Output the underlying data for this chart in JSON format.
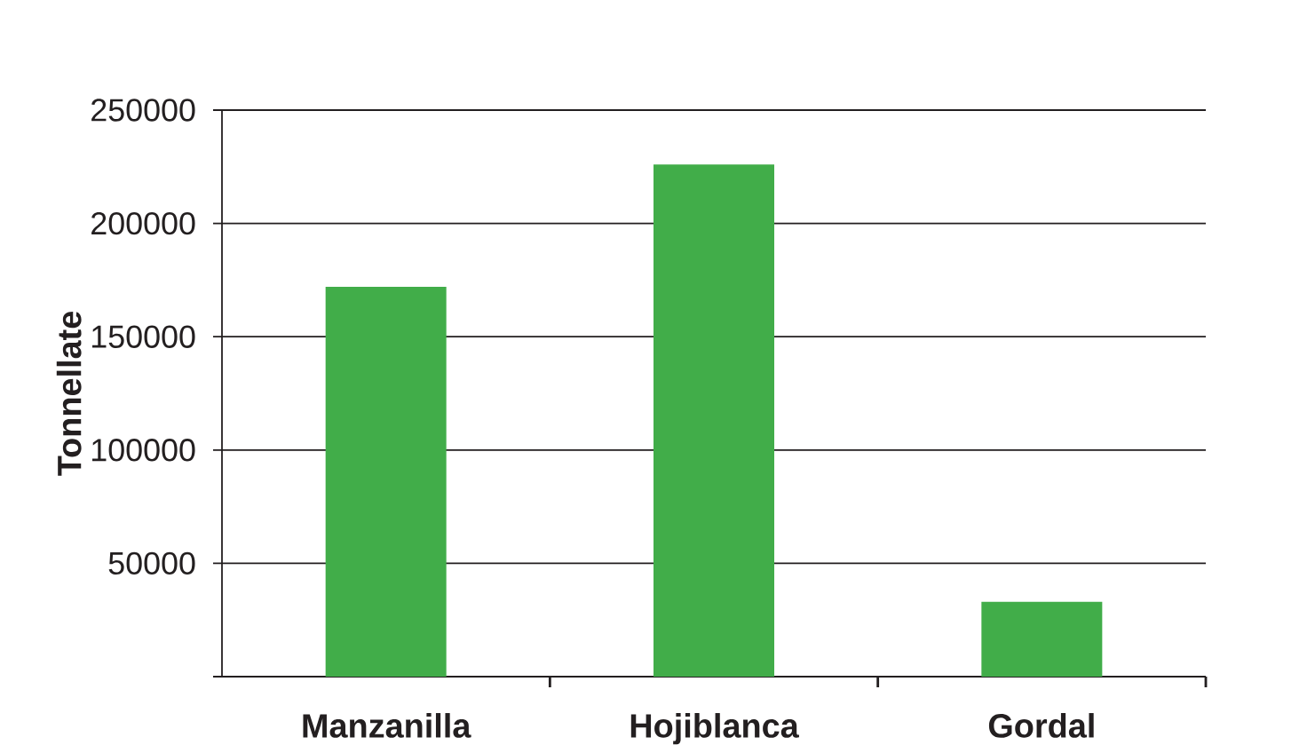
{
  "chart_data": {
    "type": "bar",
    "ylabel": "Tonnellate",
    "categories": [
      "Manzanilla",
      "Hojiblanca",
      "Gordal"
    ],
    "values": [
      172000,
      226000,
      33000
    ],
    "color": "#41ad49",
    "ylim": [
      0,
      250000
    ],
    "yticks": [
      {
        "value": 0,
        "label": null
      },
      50000,
      100000,
      150000,
      200000,
      250000
    ],
    "grid": "y"
  }
}
